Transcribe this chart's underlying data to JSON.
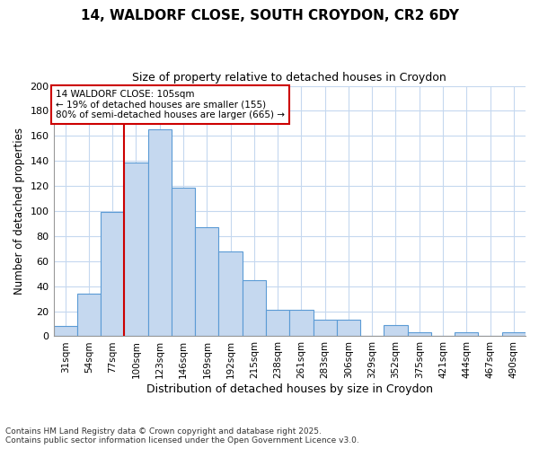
{
  "title1": "14, WALDORF CLOSE, SOUTH CROYDON, CR2 6DY",
  "title2": "Size of property relative to detached houses in Croydon",
  "xlabel": "Distribution of detached houses by size in Croydon",
  "ylabel": "Number of detached properties",
  "categories": [
    "31sqm",
    "54sqm",
    "77sqm",
    "100sqm",
    "123sqm",
    "146sqm",
    "169sqm",
    "192sqm",
    "215sqm",
    "238sqm",
    "261sqm",
    "283sqm",
    "306sqm",
    "329sqm",
    "352sqm",
    "375sqm",
    "421sqm",
    "444sqm",
    "467sqm",
    "490sqm"
  ],
  "values": [
    8,
    34,
    99,
    139,
    165,
    119,
    87,
    68,
    45,
    21,
    21,
    13,
    13,
    0,
    9,
    3,
    0,
    3,
    0,
    3
  ],
  "bar_color": "#c5d8ef",
  "bar_edge_color": "#5b9bd5",
  "red_line_x": 2.5,
  "annotation_text": "14 WALDORF CLOSE: 105sqm\n← 19% of detached houses are smaller (155)\n80% of semi-detached houses are larger (665) →",
  "annotation_box_color": "#ffffff",
  "annotation_box_edge": "#cc0000",
  "red_line_color": "#cc0000",
  "footer1": "Contains HM Land Registry data © Crown copyright and database right 2025.",
  "footer2": "Contains public sector information licensed under the Open Government Licence v3.0.",
  "background_color": "#ffffff",
  "plot_background": "#ffffff",
  "grid_color": "#c5d8ef",
  "ylim": [
    0,
    200
  ],
  "yticks": [
    0,
    20,
    40,
    60,
    80,
    100,
    120,
    140,
    160,
    180,
    200
  ]
}
